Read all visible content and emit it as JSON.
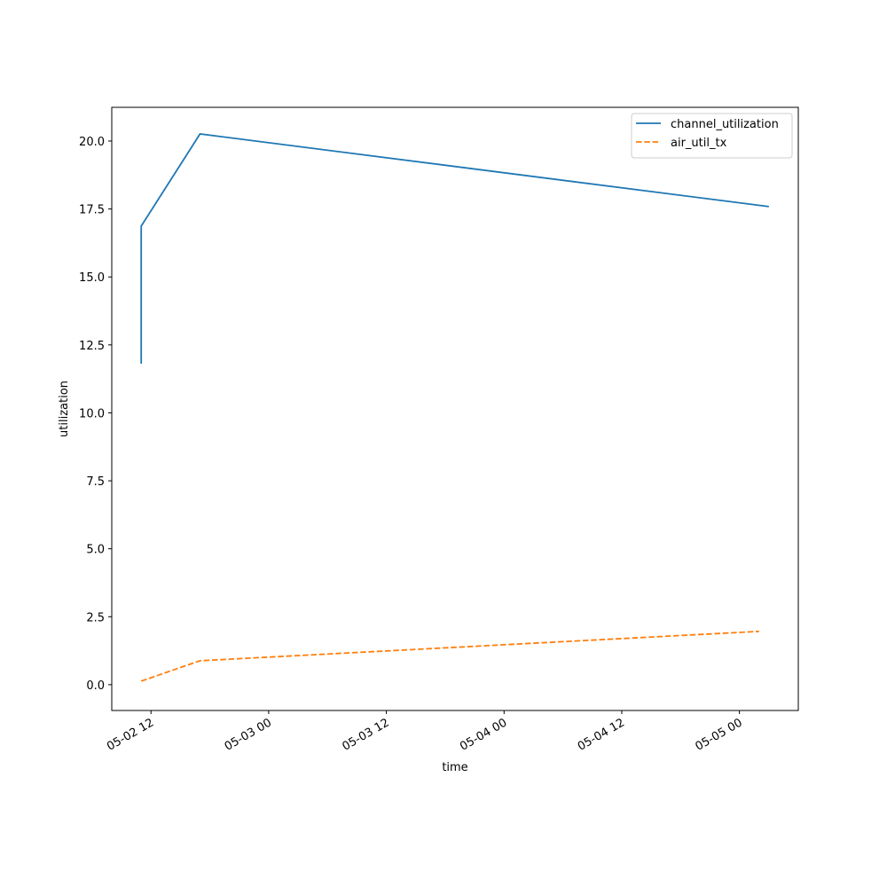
{
  "chart_data": {
    "type": "line",
    "x_label": "time",
    "y_label": "utilization",
    "series": [
      {
        "name": "channel_utilization",
        "color": "#1f77b4",
        "dash": "solid",
        "x": [
          "05-02 11",
          "05-02 11",
          "05-02 17",
          "05-05 03"
        ],
        "values": [
          11.81,
          16.87,
          20.26,
          17.59
        ]
      },
      {
        "name": "air_util_tx",
        "color": "#ff7f0e",
        "dash": "dashed",
        "x": [
          "05-02 11",
          "05-02 17",
          "05-05 02"
        ],
        "values": [
          0.13,
          0.88,
          1.96
        ]
      }
    ],
    "xlim": [
      "05-02 08",
      "05-05 06"
    ],
    "xticks": [
      "05-02 12",
      "05-03 00",
      "05-03 12",
      "05-04 00",
      "05-04 12",
      "05-05 00"
    ],
    "ylim": [
      -0.95,
      21.24
    ],
    "yticks": [
      {
        "value": 0,
        "label": "0.0"
      },
      2.5,
      {
        "value": 5,
        "label": "5.0"
      },
      7.5,
      {
        "value": 10,
        "label": "10.0"
      },
      12.5,
      {
        "value": 15,
        "label": "15.0"
      },
      17.5,
      {
        "value": 20,
        "label": "20.0"
      }
    ],
    "grid": false,
    "legend": "upper right"
  }
}
